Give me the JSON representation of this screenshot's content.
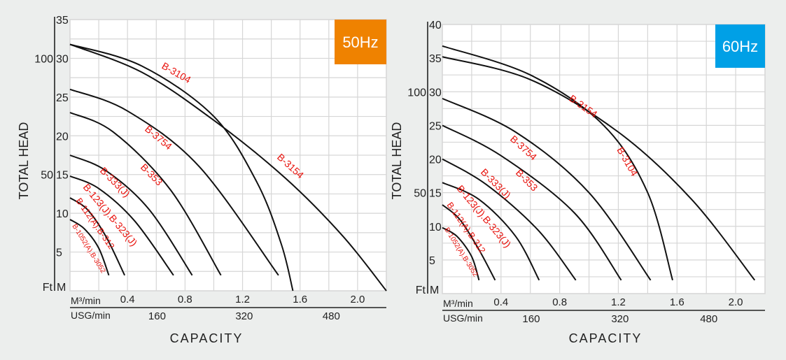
{
  "chart_data": [
    {
      "type": "line",
      "title": "50Hz",
      "badge": {
        "label": "50Hz",
        "color": "#ef8200"
      },
      "ylabel": "TOTAL HEAD",
      "xlabel": "CAPACITY",
      "y_units": {
        "left": "Ft",
        "right": "M"
      },
      "x_units": {
        "primary": "M³/min",
        "secondary": "USG/min"
      },
      "ylim": [
        0,
        35
      ],
      "xlim": [
        0,
        2.2
      ],
      "y_ticks_m": [
        5,
        10,
        15,
        20,
        25,
        30,
        35
      ],
      "y_ticks_ft": [
        50,
        100
      ],
      "x_ticks_m3": [
        "0.4",
        "0.8",
        "1.2",
        "1.6",
        "2.0"
      ],
      "x_ticks_usg": [
        "160",
        "320",
        "480"
      ],
      "grid": true,
      "series": [
        {
          "name": "B-1052(A).B-3052",
          "points": [
            [
              0,
              9.2
            ],
            [
              0.1,
              8.0
            ],
            [
              0.2,
              5.5
            ],
            [
              0.27,
              2.0
            ]
          ]
        },
        {
          "name": "B-112(A).B-312",
          "points": [
            [
              0,
              12.0
            ],
            [
              0.12,
              10.5
            ],
            [
              0.25,
              7.0
            ],
            [
              0.38,
              2.0
            ]
          ]
        },
        {
          "name": "B-123(J).B-323(J)",
          "points": [
            [
              0,
              14.8
            ],
            [
              0.2,
              13.2
            ],
            [
              0.45,
              9.0
            ],
            [
              0.72,
              2.0
            ]
          ]
        },
        {
          "name": "B-333(J)",
          "points": [
            [
              0,
              17.5
            ],
            [
              0.25,
              15.5
            ],
            [
              0.55,
              10.5
            ],
            [
              0.85,
              2.0
            ]
          ]
        },
        {
          "name": "B-353",
          "points": [
            [
              0,
              23.0
            ],
            [
              0.3,
              20.5
            ],
            [
              0.7,
              13.0
            ],
            [
              1.05,
              2.0
            ]
          ]
        },
        {
          "name": "B-3754",
          "points": [
            [
              0,
              26.0
            ],
            [
              0.4,
              23.2
            ],
            [
              0.9,
              16.0
            ],
            [
              1.45,
              2.0
            ]
          ]
        },
        {
          "name": "B-3104",
          "points": [
            [
              0,
              31.8
            ],
            [
              0.5,
              29.0
            ],
            [
              1.0,
              22.5
            ],
            [
              1.3,
              14.0
            ],
            [
              1.47,
              6.0
            ],
            [
              1.55,
              0
            ]
          ]
        },
        {
          "name": "B-3154",
          "points": [
            [
              0,
              31.8
            ],
            [
              0.5,
              28.2
            ],
            [
              1.0,
              22.0
            ],
            [
              1.5,
              14.5
            ],
            [
              1.9,
              7.0
            ],
            [
              2.2,
              0
            ]
          ]
        }
      ]
    },
    {
      "type": "line",
      "title": "60Hz",
      "badge": {
        "label": "60Hz",
        "color": "#00a0e6"
      },
      "ylabel": "TOTAL HEAD",
      "xlabel": "CAPACITY",
      "y_units": {
        "left": "Ft",
        "right": "M"
      },
      "x_units": {
        "primary": "M³/min",
        "secondary": "USG/min"
      },
      "ylim": [
        0,
        40
      ],
      "xlim": [
        0,
        2.2
      ],
      "y_ticks_m": [
        5,
        10,
        15,
        20,
        25,
        30,
        35,
        40
      ],
      "y_ticks_ft": [
        50,
        100
      ],
      "x_ticks_m3": [
        "0.4",
        "0.8",
        "1.2",
        "1.6",
        "2.0"
      ],
      "x_ticks_usg": [
        "160",
        "320",
        "480"
      ],
      "grid": true,
      "series": [
        {
          "name": "B-1052(A).B-3052",
          "points": [
            [
              0,
              9.8
            ],
            [
              0.1,
              8.5
            ],
            [
              0.2,
              5.5
            ],
            [
              0.25,
              2.0
            ]
          ]
        },
        {
          "name": "B-112(A).B-312",
          "points": [
            [
              0,
              13.2
            ],
            [
              0.12,
              11.0
            ],
            [
              0.25,
              6.5
            ],
            [
              0.36,
              2.0
            ]
          ]
        },
        {
          "name": "B-123(J).B-323(J)",
          "points": [
            [
              0,
              16.5
            ],
            [
              0.25,
              14.0
            ],
            [
              0.5,
              8.5
            ],
            [
              0.66,
              2.0
            ]
          ]
        },
        {
          "name": "B-333(J)",
          "points": [
            [
              0,
              20.0
            ],
            [
              0.3,
              16.2
            ],
            [
              0.65,
              9.5
            ],
            [
              0.91,
              2.0
            ]
          ]
        },
        {
          "name": "B-353",
          "points": [
            [
              0,
              25.0
            ],
            [
              0.4,
              20.5
            ],
            [
              0.9,
              12.0
            ],
            [
              1.22,
              2.0
            ]
          ]
        },
        {
          "name": "B-3754",
          "points": [
            [
              0,
              29.0
            ],
            [
              0.5,
              24.0
            ],
            [
              1.0,
              15.0
            ],
            [
              1.42,
              2.0
            ]
          ]
        },
        {
          "name": "B-3104",
          "points": [
            [
              0,
              36.8
            ],
            [
              0.6,
              32.5
            ],
            [
              1.1,
              25.0
            ],
            [
              1.4,
              15.0
            ],
            [
              1.57,
              2.0
            ]
          ]
        },
        {
          "name": "B-3154",
          "points": [
            [
              0,
              35.2
            ],
            [
              0.6,
              31.8
            ],
            [
              1.2,
              24.0
            ],
            [
              1.7,
              14.0
            ],
            [
              2.13,
              2.0
            ]
          ]
        }
      ]
    }
  ],
  "panels": [
    {
      "badge_label": "50Hz",
      "ylabel": "TOTAL HEAD",
      "xlabel": "CAPACITY",
      "ft_label": "Ft",
      "m_label": "M",
      "m3_label": "M³/min",
      "usg_label": "USG/min"
    },
    {
      "badge_label": "60Hz",
      "ylabel": "TOTAL HEAD",
      "xlabel": "CAPACITY",
      "ft_label": "Ft",
      "m_label": "M",
      "m3_label": "M³/min",
      "usg_label": "USG/min"
    }
  ],
  "colors": {
    "background": "#eceeed",
    "plot_bg": "#ffffff",
    "grid": "#d6d6d6",
    "curve": "#111111",
    "label": "#e8120c",
    "badge_50": "#ef8200",
    "badge_60": "#00a0e6"
  }
}
